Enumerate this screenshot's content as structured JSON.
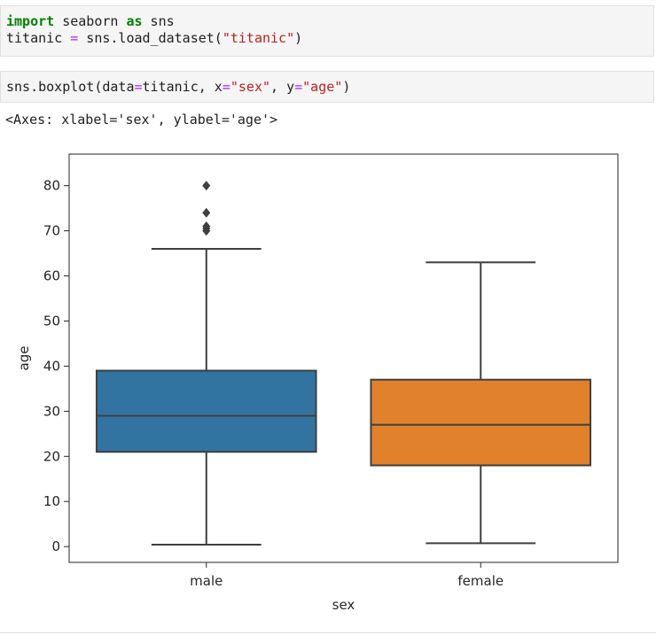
{
  "cells": {
    "cell1": {
      "line1": {
        "kw1": "import",
        "t1": " seaborn ",
        "kw2": "as",
        "t2": " sns"
      },
      "line2": {
        "t1": "titanic ",
        "op": "=",
        "t2": " sns.load_dataset(",
        "str": "\"titanic\"",
        "t3": ")"
      }
    },
    "cell2": {
      "line1": {
        "t1": "sns.boxplot(data",
        "op1": "=",
        "t2": "titanic, x",
        "op2": "=",
        "str1": "\"sex\"",
        "t3": ", y",
        "op3": "=",
        "str2": "\"age\"",
        "t4": ")"
      }
    },
    "output_text": "<Axes: xlabel='sex', ylabel='age'>"
  },
  "chart_data": {
    "type": "box",
    "xlabel": "sex",
    "ylabel": "age",
    "ylim": [
      -3.5,
      87
    ],
    "yticks": [
      0,
      10,
      20,
      30,
      40,
      50,
      60,
      70,
      80
    ],
    "categories": [
      "male",
      "female"
    ],
    "colors": [
      "#3274a1",
      "#e1812c"
    ],
    "boxes": [
      {
        "category": "male",
        "min": 0.42,
        "q1": 21,
        "median": 29,
        "q3": 39,
        "max": 66,
        "outliers": [
          70,
          70.5,
          71,
          74,
          80
        ]
      },
      {
        "category": "female",
        "min": 0.75,
        "q1": 18,
        "median": 27,
        "q3": 37,
        "max": 63,
        "outliers": []
      }
    ]
  }
}
